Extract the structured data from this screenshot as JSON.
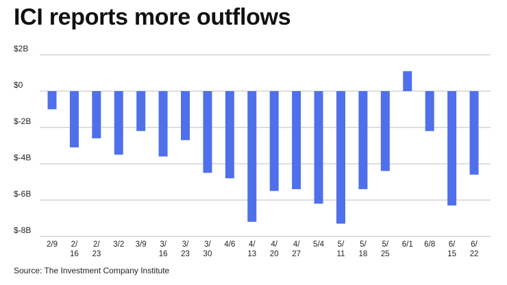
{
  "chart_data": {
    "type": "bar",
    "title": "ICI reports more outflows",
    "source": "Source: The Investment Company Institute",
    "xlabel": "",
    "ylabel": "",
    "ylim": [
      -8,
      2
    ],
    "y_ticks": [
      {
        "value": 2,
        "label": "$2B"
      },
      {
        "value": 0,
        "label": "$0"
      },
      {
        "value": -2,
        "label": "$-2B"
      },
      {
        "value": -4,
        "label": "$-4B"
      },
      {
        "value": -6,
        "label": "$-6B"
      },
      {
        "value": -8,
        "label": "$-8B"
      }
    ],
    "grid": true,
    "bar_color": "#4f70ea",
    "categories": [
      [
        "2/9"
      ],
      [
        "2/",
        "16"
      ],
      [
        "2/",
        "23"
      ],
      [
        "3/2"
      ],
      [
        "3/9"
      ],
      [
        "3/",
        "16"
      ],
      [
        "3/",
        "23"
      ],
      [
        "3/",
        "30"
      ],
      [
        "4/6"
      ],
      [
        "4/",
        "13"
      ],
      [
        "4/",
        "20"
      ],
      [
        "4/",
        "27"
      ],
      [
        "5/4"
      ],
      [
        "5/",
        "11"
      ],
      [
        "5/",
        "18"
      ],
      [
        "5/",
        "25"
      ],
      [
        "6/1"
      ],
      [
        "6/8"
      ],
      [
        "6/",
        "15"
      ],
      [
        "6/",
        "22"
      ]
    ],
    "values": [
      -1.0,
      -3.1,
      -2.6,
      -3.5,
      -2.2,
      -3.6,
      -2.7,
      -4.5,
      -4.8,
      -7.2,
      -5.5,
      -5.4,
      -6.2,
      -7.3,
      -5.4,
      -4.4,
      1.1,
      -2.2,
      -6.3,
      -4.6
    ]
  }
}
